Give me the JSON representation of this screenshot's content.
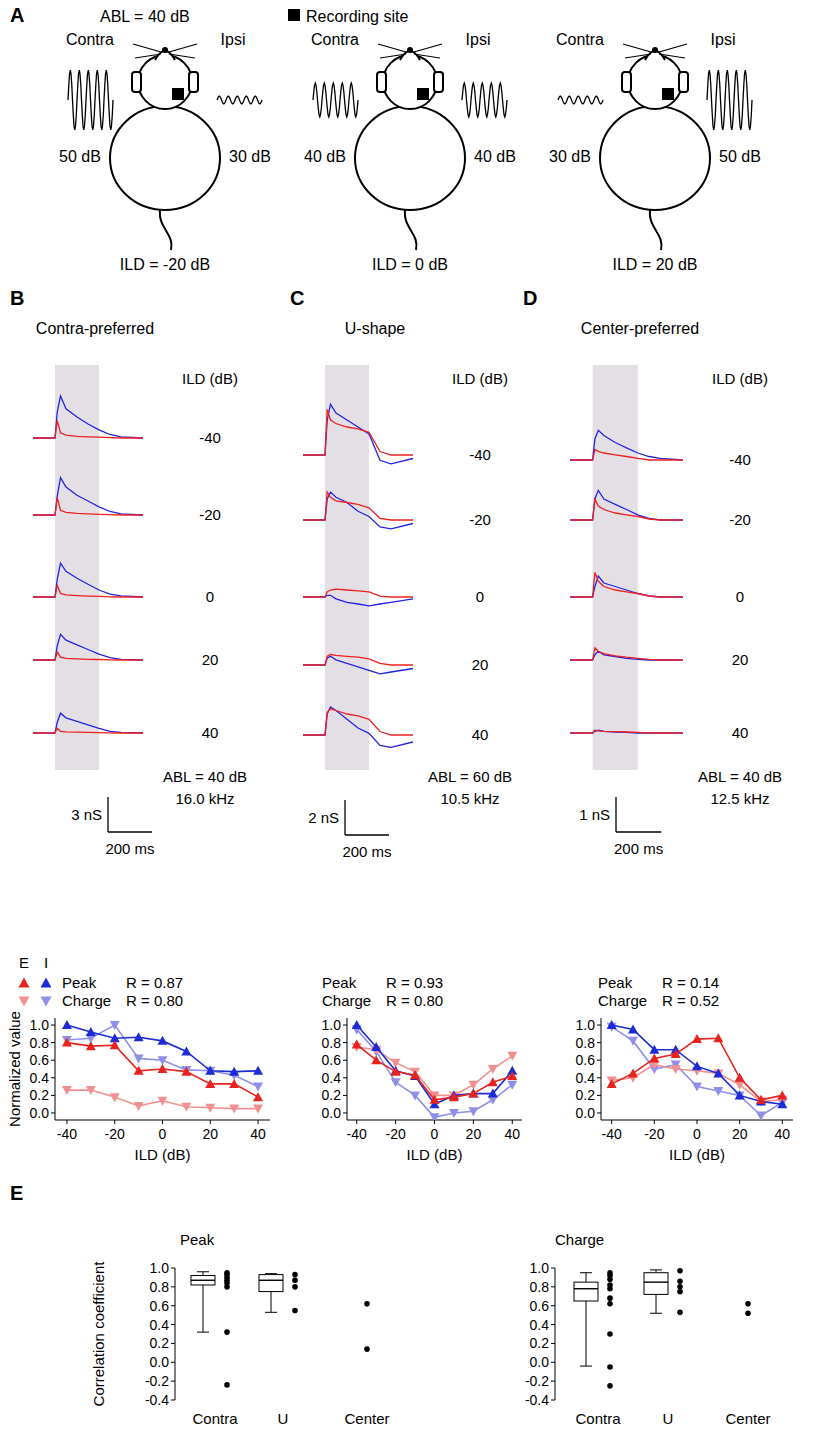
{
  "diagram": {
    "letter": "A",
    "abl": "ABL = 40 dB",
    "site_label": "Recording site",
    "heads": [
      {
        "contra": "Contra",
        "ipsi": "Ipsi",
        "contra_level": {
          "value": 50,
          "label": "50 dB"
        },
        "ipsi_level": {
          "value": 30,
          "label": "30 dB"
        },
        "ild": "ILD = -20 dB"
      },
      {
        "contra": "Contra",
        "ipsi": "Ipsi",
        "contra_level": {
          "value": 40,
          "label": "40 dB"
        },
        "ipsi_level": {
          "value": 40,
          "label": "40 dB"
        },
        "ild": "ILD = 0 dB"
      },
      {
        "contra": "Contra",
        "ipsi": "Ipsi",
        "contra_level": {
          "value": 30,
          "label": "30 dB"
        },
        "ipsi_level": {
          "value": 50,
          "label": "50 dB"
        },
        "ild": "ILD = 20 dB"
      }
    ]
  },
  "chart_data": [
    {
      "type": "traces",
      "letter": "B",
      "title": "Contra-preferred",
      "row_header": "ILD (dB)",
      "x": [
        -100,
        -10,
        0,
        10,
        25,
        50,
        100,
        150,
        200,
        250,
        300,
        400
      ],
      "xlim": [
        -100,
        400
      ],
      "stimulus": [
        0,
        200
      ],
      "scale_y": {
        "value": 3,
        "label": "3 nS"
      },
      "scale_x": {
        "value": 200,
        "label": "200 ms"
      },
      "condition": [
        "ABL = 40 dB",
        "16.0 kHz"
      ],
      "e_color": "#ee2020",
      "i_color": "#2323e6",
      "rows": [
        {
          "ild": -40,
          "e": [
            0,
            0,
            0,
            1.5,
            0.45,
            0.25,
            0.15,
            0.1,
            0.07,
            0.03,
            0,
            0
          ],
          "i": [
            0,
            0,
            0,
            2.2,
            3.6,
            2.5,
            1.8,
            1.2,
            0.7,
            0.3,
            0.1,
            0
          ]
        },
        {
          "ild": -20,
          "e": [
            0,
            0,
            0,
            1.5,
            0.4,
            0.22,
            0.15,
            0.1,
            0.06,
            0.03,
            0,
            0
          ],
          "i": [
            0,
            0,
            0,
            1.6,
            3.2,
            2.4,
            1.7,
            1.2,
            0.7,
            0.3,
            0.1,
            0
          ]
        },
        {
          "ild": 0,
          "e": [
            0,
            0,
            0,
            1.0,
            0.3,
            0.18,
            0.12,
            0.08,
            0.05,
            0.02,
            0,
            0
          ],
          "i": [
            0,
            0,
            0,
            1.5,
            2.9,
            2.2,
            1.6,
            1.1,
            0.6,
            0.25,
            0.1,
            0
          ]
        },
        {
          "ild": 20,
          "e": [
            0,
            0,
            0,
            0.7,
            0.25,
            0.15,
            0.1,
            0.06,
            0.04,
            0.02,
            0,
            0
          ],
          "i": [
            0,
            0,
            0,
            1.2,
            2.2,
            1.7,
            1.3,
            0.9,
            0.5,
            0.2,
            0.05,
            0
          ]
        },
        {
          "ild": 40,
          "e": [
            0,
            0,
            0,
            0.4,
            0.15,
            0.1,
            0.07,
            0.05,
            0.03,
            0.01,
            0,
            0
          ],
          "i": [
            0,
            0,
            0,
            0.9,
            1.7,
            1.3,
            1.0,
            0.7,
            0.4,
            0.15,
            0.05,
            0
          ]
        }
      ]
    },
    {
      "type": "traces",
      "letter": "C",
      "title": "U-shape",
      "row_header": "ILD (dB)",
      "x": [
        -100,
        -10,
        0,
        10,
        25,
        50,
        100,
        150,
        200,
        250,
        300,
        400
      ],
      "xlim": [
        -100,
        400
      ],
      "stimulus": [
        0,
        200
      ],
      "scale_y": {
        "value": 2,
        "label": "2 nS"
      },
      "scale_x": {
        "value": 200,
        "label": "200 ms"
      },
      "condition": [
        "ABL = 60 dB",
        "10.5 kHz"
      ],
      "e_color": "#ee2020",
      "i_color": "#2323e6",
      "rows": [
        {
          "ild": -40,
          "e": [
            0,
            0,
            0,
            2.6,
            2.0,
            1.8,
            1.6,
            1.5,
            1.3,
            0.2,
            0,
            0
          ],
          "i": [
            0,
            0,
            0,
            2.0,
            2.9,
            2.4,
            2.0,
            1.6,
            1.2,
            -0.3,
            -0.5,
            -0.2
          ]
        },
        {
          "ild": -20,
          "e": [
            0,
            0,
            0,
            1.6,
            1.3,
            1.1,
            1.0,
            0.9,
            0.7,
            0.1,
            0,
            0
          ],
          "i": [
            0,
            0,
            0,
            1.2,
            1.6,
            1.3,
            1.0,
            0.5,
            0.2,
            -0.4,
            -0.5,
            -0.2
          ]
        },
        {
          "ild": 0,
          "e": [
            0,
            0,
            0,
            0.3,
            0.4,
            0.45,
            0.4,
            0.35,
            0.3,
            0.05,
            0,
            0
          ],
          "i": [
            0,
            0,
            0,
            0.1,
            0.1,
            -0.1,
            -0.3,
            -0.4,
            -0.5,
            -0.4,
            -0.3,
            -0.1
          ]
        },
        {
          "ild": 20,
          "e": [
            0,
            0,
            0,
            0.5,
            0.6,
            0.55,
            0.5,
            0.45,
            0.35,
            0.1,
            0,
            0
          ],
          "i": [
            0,
            0,
            0,
            0.4,
            0.5,
            0.3,
            0.1,
            -0.1,
            -0.3,
            -0.5,
            -0.4,
            -0.2
          ]
        },
        {
          "ild": 40,
          "e": [
            0,
            0,
            0,
            1.3,
            1.5,
            1.4,
            1.2,
            1.1,
            0.9,
            0.2,
            0,
            0
          ],
          "i": [
            0,
            0,
            0,
            1.2,
            1.6,
            1.4,
            0.9,
            0.4,
            0.1,
            -0.6,
            -0.7,
            -0.4
          ]
        }
      ]
    },
    {
      "type": "traces",
      "letter": "D",
      "title": "Center-preferred",
      "row_header": "ILD (dB)",
      "x": [
        -100,
        -10,
        0,
        10,
        25,
        50,
        100,
        150,
        200,
        250,
        300,
        400
      ],
      "xlim": [
        -100,
        400
      ],
      "stimulus": [
        0,
        200
      ],
      "scale_y": {
        "value": 1,
        "label": "1 nS"
      },
      "scale_x": {
        "value": 200,
        "label": "200 ms"
      },
      "condition": [
        "ABL = 40 dB",
        "12.5 kHz"
      ],
      "e_color": "#ee2020",
      "i_color": "#2323e6",
      "rows": [
        {
          "ild": -40,
          "e": [
            0,
            0,
            0,
            0.3,
            0.25,
            0.2,
            0.15,
            0.1,
            0.05,
            0,
            0,
            0
          ],
          "i": [
            0,
            0,
            0,
            0.6,
            0.85,
            0.7,
            0.5,
            0.35,
            0.2,
            0.1,
            0.05,
            0
          ]
        },
        {
          "ild": -20,
          "e": [
            0,
            0,
            0,
            0.6,
            0.4,
            0.3,
            0.2,
            0.15,
            0.1,
            0.03,
            0,
            0
          ],
          "i": [
            0,
            0,
            0,
            0.6,
            0.85,
            0.6,
            0.45,
            0.3,
            0.15,
            0.05,
            0,
            0
          ]
        },
        {
          "ild": 0,
          "e": [
            0,
            0,
            0,
            0.7,
            0.45,
            0.3,
            0.2,
            0.15,
            0.1,
            0.03,
            0,
            0
          ],
          "i": [
            0,
            0,
            0,
            0.3,
            0.6,
            0.4,
            0.3,
            0.2,
            0.1,
            0.03,
            0,
            0
          ]
        },
        {
          "ild": 20,
          "e": [
            0,
            0,
            0,
            0.35,
            0.25,
            0.18,
            0.12,
            0.08,
            0.05,
            0.02,
            0,
            0
          ],
          "i": [
            0,
            0,
            0,
            0.15,
            0.25,
            0.15,
            0.1,
            0.05,
            0.02,
            0,
            0,
            0
          ]
        },
        {
          "ild": 40,
          "e": [
            0,
            0,
            0,
            0.08,
            0.06,
            0.05,
            0.04,
            0.03,
            0.02,
            0,
            0,
            0
          ],
          "i": [
            0,
            0,
            0,
            0.05,
            0.08,
            0.05,
            0.03,
            0.02,
            0,
            0,
            0,
            0
          ]
        }
      ]
    },
    {
      "type": "line",
      "x": [
        -40,
        -30,
        -20,
        -10,
        0,
        10,
        20,
        30,
        40
      ],
      "xlim": [
        -45,
        45
      ],
      "xticks": [
        -40,
        -20,
        0,
        20,
        40
      ],
      "ylim": [
        -0.08,
        1.08
      ],
      "yticks": [
        {
          "value": 0,
          "label": "0.0"
        },
        0.2,
        0.4,
        0.6,
        0.8,
        {
          "value": 1,
          "label": "1.0"
        }
      ],
      "xlabel": "ILD (dB)",
      "ylabel": "Normalized value",
      "legend_columns": [
        "E",
        "I"
      ],
      "correlations": [
        {
          "label": "Peak",
          "value": 0.87,
          "value_label": "R = 0.87"
        },
        {
          "label": "Charge",
          "value": 0.8,
          "value_label": "R = 0.80"
        }
      ],
      "series": [
        {
          "group": "I",
          "measure": "Charge",
          "color": "#8f8fe8",
          "marker": "triangle-down",
          "values": [
            0.83,
            0.85,
            1.0,
            0.62,
            0.6,
            0.49,
            0.48,
            0.43,
            0.3
          ]
        },
        {
          "group": "E",
          "measure": "Charge",
          "color": "#f29090",
          "marker": "triangle-down",
          "values": [
            0.26,
            0.26,
            0.18,
            0.08,
            0.14,
            0.07,
            0.06,
            0.05,
            0.05
          ]
        },
        {
          "group": "I",
          "measure": "Peak",
          "color": "#1c2bd6",
          "marker": "triangle-up",
          "values": [
            1.0,
            0.92,
            0.85,
            0.86,
            0.82,
            0.7,
            0.48,
            0.47,
            0.48
          ]
        },
        {
          "group": "E",
          "measure": "Peak",
          "color": "#e8231e",
          "marker": "triangle-up",
          "values": [
            0.8,
            0.76,
            0.77,
            0.48,
            0.5,
            0.47,
            0.33,
            0.33,
            0.18
          ]
        }
      ]
    },
    {
      "type": "line",
      "x": [
        -40,
        -30,
        -20,
        -10,
        0,
        10,
        20,
        30,
        40
      ],
      "xlim": [
        -45,
        45
      ],
      "xticks": [
        -40,
        -20,
        0,
        20,
        40
      ],
      "ylim": [
        -0.08,
        1.08
      ],
      "yticks": [
        {
          "value": 0,
          "label": "0.0"
        },
        0.2,
        0.4,
        0.6,
        0.8,
        {
          "value": 1,
          "label": "1.0"
        }
      ],
      "xlabel": "ILD (dB)",
      "correlations": [
        {
          "label": "Peak",
          "value": 0.93,
          "value_label": "R = 0.93"
        },
        {
          "label": "Charge",
          "value": 0.8,
          "value_label": "R = 0.80"
        }
      ],
      "series": [
        {
          "group": "I",
          "measure": "Charge",
          "color": "#8f8fe8",
          "marker": "triangle-down",
          "values": [
            0.95,
            0.7,
            0.35,
            0.2,
            -0.05,
            0.0,
            0.02,
            0.15,
            0.32
          ]
        },
        {
          "group": "E",
          "measure": "Charge",
          "color": "#f29090",
          "marker": "triangle-down",
          "values": [
            0.75,
            0.72,
            0.57,
            0.47,
            0.2,
            0.2,
            0.32,
            0.5,
            0.65
          ]
        },
        {
          "group": "I",
          "measure": "Peak",
          "color": "#1c2bd6",
          "marker": "triangle-up",
          "values": [
            1.0,
            0.75,
            0.48,
            0.42,
            0.1,
            0.2,
            0.22,
            0.22,
            0.48
          ]
        },
        {
          "group": "E",
          "measure": "Peak",
          "color": "#e8231e",
          "marker": "triangle-up",
          "values": [
            0.78,
            0.6,
            0.47,
            0.43,
            0.15,
            0.18,
            0.22,
            0.35,
            0.42
          ]
        }
      ]
    },
    {
      "type": "line",
      "x": [
        -40,
        -30,
        -20,
        -10,
        0,
        10,
        20,
        30,
        40
      ],
      "xlim": [
        -45,
        45
      ],
      "xticks": [
        -40,
        -20,
        0,
        20,
        40
      ],
      "ylim": [
        -0.08,
        1.08
      ],
      "yticks": [
        {
          "value": 0,
          "label": "0.0"
        },
        0.2,
        0.4,
        0.6,
        0.8,
        {
          "value": 1,
          "label": "1.0"
        }
      ],
      "xlabel": "ILD (dB)",
      "correlations": [
        {
          "label": "Peak",
          "value": 0.14,
          "value_label": "R = 0.14"
        },
        {
          "label": "Charge",
          "value": 0.52,
          "value_label": "R = 0.52"
        }
      ],
      "series": [
        {
          "group": "I",
          "measure": "Charge",
          "color": "#8f8fe8",
          "marker": "triangle-down",
          "values": [
            0.98,
            0.82,
            0.5,
            0.55,
            0.3,
            0.25,
            0.2,
            -0.03,
            0.12
          ]
        },
        {
          "group": "E",
          "measure": "Charge",
          "color": "#f29090",
          "marker": "triangle-down",
          "values": [
            0.37,
            0.4,
            0.55,
            0.5,
            0.48,
            0.45,
            0.32,
            0.13,
            0.15
          ]
        },
        {
          "group": "I",
          "measure": "Peak",
          "color": "#1c2bd6",
          "marker": "triangle-up",
          "values": [
            1.0,
            0.95,
            0.72,
            0.72,
            0.53,
            0.45,
            0.2,
            0.13,
            0.1
          ]
        },
        {
          "group": "E",
          "measure": "Peak",
          "color": "#e8231e",
          "marker": "triangle-up",
          "values": [
            0.33,
            0.45,
            0.62,
            0.67,
            0.84,
            0.85,
            0.4,
            0.15,
            0.2
          ]
        }
      ]
    },
    {
      "type": "box",
      "letter": "E",
      "title": "Peak",
      "categories": [
        "Contra",
        "U",
        "Center"
      ],
      "ylim": [
        -0.4,
        1.0
      ],
      "yticks": [
        -0.4,
        -0.2,
        {
          "value": 0,
          "label": "0.0"
        },
        0.2,
        0.4,
        0.6,
        0.8,
        {
          "value": 1,
          "label": "1.0"
        }
      ],
      "ylabel": "Correlation coefficient",
      "boxes": [
        {
          "whisker_low": 0.32,
          "q1": 0.82,
          "median": 0.87,
          "q3": 0.92,
          "whisker_high": 0.96
        },
        {
          "whisker_low": 0.53,
          "q1": 0.75,
          "median": 0.87,
          "q3": 0.93,
          "whisker_high": 0.94
        },
        null
      ],
      "points": [
        [
          0.95,
          0.93,
          0.9,
          0.87,
          0.84,
          0.8,
          0.32,
          -0.24
        ],
        [
          0.93,
          0.87,
          0.8,
          0.55
        ],
        [
          0.62,
          0.14
        ]
      ]
    },
    {
      "type": "box",
      "title": "Charge",
      "categories": [
        "Contra",
        "U",
        "Center"
      ],
      "ylim": [
        -0.4,
        1.0
      ],
      "yticks": [
        -0.4,
        -0.2,
        {
          "value": 0,
          "label": "0.0"
        },
        0.2,
        0.4,
        0.6,
        0.8,
        {
          "value": 1,
          "label": "1.0"
        }
      ],
      "boxes": [
        {
          "whisker_low": -0.04,
          "q1": 0.65,
          "median": 0.78,
          "q3": 0.85,
          "whisker_high": 0.95
        },
        {
          "whisker_low": 0.52,
          "q1": 0.72,
          "median": 0.85,
          "q3": 0.95,
          "whisker_high": 0.98
        },
        null
      ],
      "points": [
        [
          0.95,
          0.92,
          0.88,
          0.82,
          0.78,
          0.68,
          0.62,
          0.3,
          -0.05,
          -0.25
        ],
        [
          0.97,
          0.86,
          0.8,
          0.75,
          0.53
        ],
        [
          0.62,
          0.52
        ]
      ]
    }
  ]
}
